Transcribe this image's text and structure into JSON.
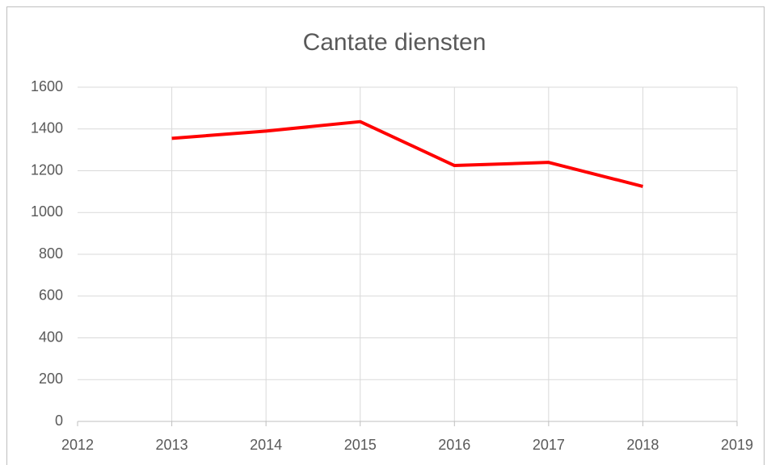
{
  "chart_data": {
    "type": "line",
    "title": "Cantate diensten",
    "x": [
      2013,
      2014,
      2015,
      2016,
      2017,
      2018
    ],
    "series": [
      {
        "name": "Cantate diensten",
        "color": "#ff0000",
        "values": [
          1355,
          1390,
          1435,
          1225,
          1240,
          1125
        ]
      }
    ],
    "xlim": [
      2012,
      2019
    ],
    "xticks": [
      2012,
      2013,
      2014,
      2015,
      2016,
      2017,
      2018,
      2019
    ],
    "ylim": [
      0,
      1600
    ],
    "yticks": [
      0,
      200,
      400,
      600,
      800,
      1000,
      1200,
      1400,
      1600
    ],
    "grid": true
  }
}
